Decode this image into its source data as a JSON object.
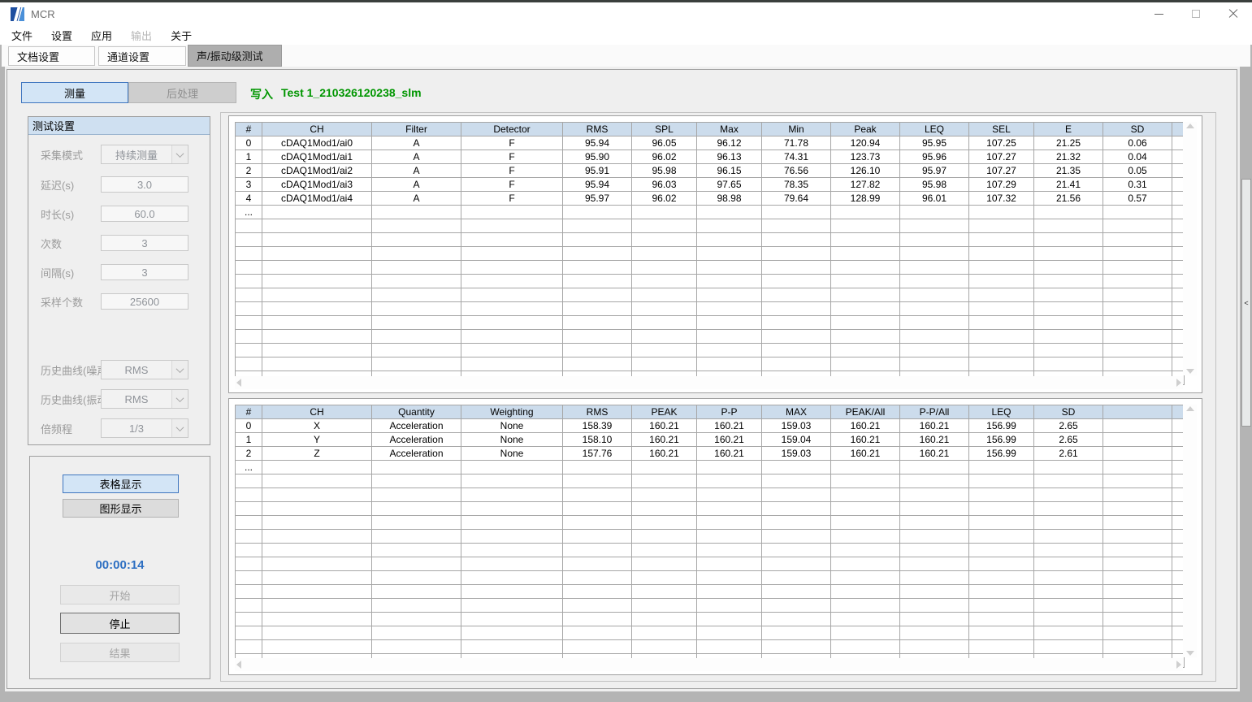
{
  "window": {
    "title": "MCR"
  },
  "menu": {
    "items": [
      {
        "label": "文件",
        "enabled": true
      },
      {
        "label": "设置",
        "enabled": true
      },
      {
        "label": "应用",
        "enabled": true
      },
      {
        "label": "输出",
        "enabled": false
      },
      {
        "label": "关于",
        "enabled": true
      }
    ]
  },
  "tabs": [
    {
      "label": "文档设置",
      "active": false
    },
    {
      "label": "通道设置",
      "active": false
    },
    {
      "label": "声/振动级测试",
      "active": true
    }
  ],
  "toolbar": {
    "measure_label": "测量",
    "postprocess_label": "后处理",
    "write_label": "写入",
    "filename": "Test 1_210326120238_slm"
  },
  "settings": {
    "title": "测试设置",
    "fields": [
      {
        "label": "采集模式",
        "value": "持续测量",
        "type": "select"
      },
      {
        "label": "延迟(s)",
        "value": "3.0",
        "type": "input"
      },
      {
        "label": "时长(s)",
        "value": "60.0",
        "type": "input"
      },
      {
        "label": "次数",
        "value": "3",
        "type": "input"
      },
      {
        "label": "间隔(s)",
        "value": "3",
        "type": "input"
      },
      {
        "label": "采样个数",
        "value": "25600",
        "type": "input"
      },
      {
        "label": "历史曲线(噪声)",
        "value": "RMS",
        "type": "select"
      },
      {
        "label": "历史曲线(振动)",
        "value": "RMS",
        "type": "select"
      },
      {
        "label": "倍频程",
        "value": "1/3",
        "type": "select"
      }
    ]
  },
  "actions": {
    "table_display": "表格显示",
    "graph_display": "图形显示",
    "timer": "00:00:14",
    "start": "开始",
    "stop": "停止",
    "result": "结果"
  },
  "splitter": {
    "collapse_glyph": "<"
  },
  "noise_table": {
    "columns": [
      "#",
      "CH",
      "Filter",
      "Detector",
      "RMS",
      "SPL",
      "Max",
      "Min",
      "Peak",
      "LEQ",
      "SEL",
      "E",
      "SD"
    ],
    "rows": [
      [
        "0",
        "cDAQ1Mod1/ai0",
        "A",
        "F",
        "95.94",
        "96.05",
        "96.12",
        "71.78",
        "120.94",
        "95.95",
        "107.25",
        "21.25",
        "0.06"
      ],
      [
        "1",
        "cDAQ1Mod1/ai1",
        "A",
        "F",
        "95.90",
        "96.02",
        "96.13",
        "74.31",
        "123.73",
        "95.96",
        "107.27",
        "21.32",
        "0.04"
      ],
      [
        "2",
        "cDAQ1Mod1/ai2",
        "A",
        "F",
        "95.91",
        "95.98",
        "96.15",
        "76.56",
        "126.10",
        "95.97",
        "107.27",
        "21.35",
        "0.05"
      ],
      [
        "3",
        "cDAQ1Mod1/ai3",
        "A",
        "F",
        "95.94",
        "96.03",
        "97.65",
        "78.35",
        "127.82",
        "95.98",
        "107.29",
        "21.41",
        "0.31"
      ],
      [
        "4",
        "cDAQ1Mod1/ai4",
        "A",
        "F",
        "95.97",
        "96.02",
        "98.98",
        "79.64",
        "128.99",
        "96.01",
        "107.32",
        "21.56",
        "0.57"
      ]
    ],
    "ellipsis": "..."
  },
  "vibration_table": {
    "columns": [
      "#",
      "CH",
      "Quantity",
      "Weighting",
      "RMS",
      "PEAK",
      "P-P",
      "MAX",
      "PEAK/All",
      "P-P/All",
      "LEQ",
      "SD"
    ],
    "rows": [
      [
        "0",
        "X",
        "Acceleration",
        "None",
        "158.39",
        "160.21",
        "160.21",
        "159.03",
        "160.21",
        "160.21",
        "156.99",
        "2.65"
      ],
      [
        "1",
        "Y",
        "Acceleration",
        "None",
        "158.10",
        "160.21",
        "160.21",
        "159.04",
        "160.21",
        "160.21",
        "156.99",
        "2.65"
      ],
      [
        "2",
        "Z",
        "Acceleration",
        "None",
        "157.76",
        "160.21",
        "160.21",
        "159.03",
        "160.21",
        "160.21",
        "156.99",
        "2.61"
      ]
    ],
    "ellipsis": "..."
  },
  "colors": {
    "accent_blue": "#3f76bf",
    "selected_bg": "#d3e5f6",
    "write_green": "#009600",
    "timer_blue": "#2d6fc2",
    "table_header_bg": "#ccdcec",
    "active_tab_gray": "#aeaeae"
  }
}
